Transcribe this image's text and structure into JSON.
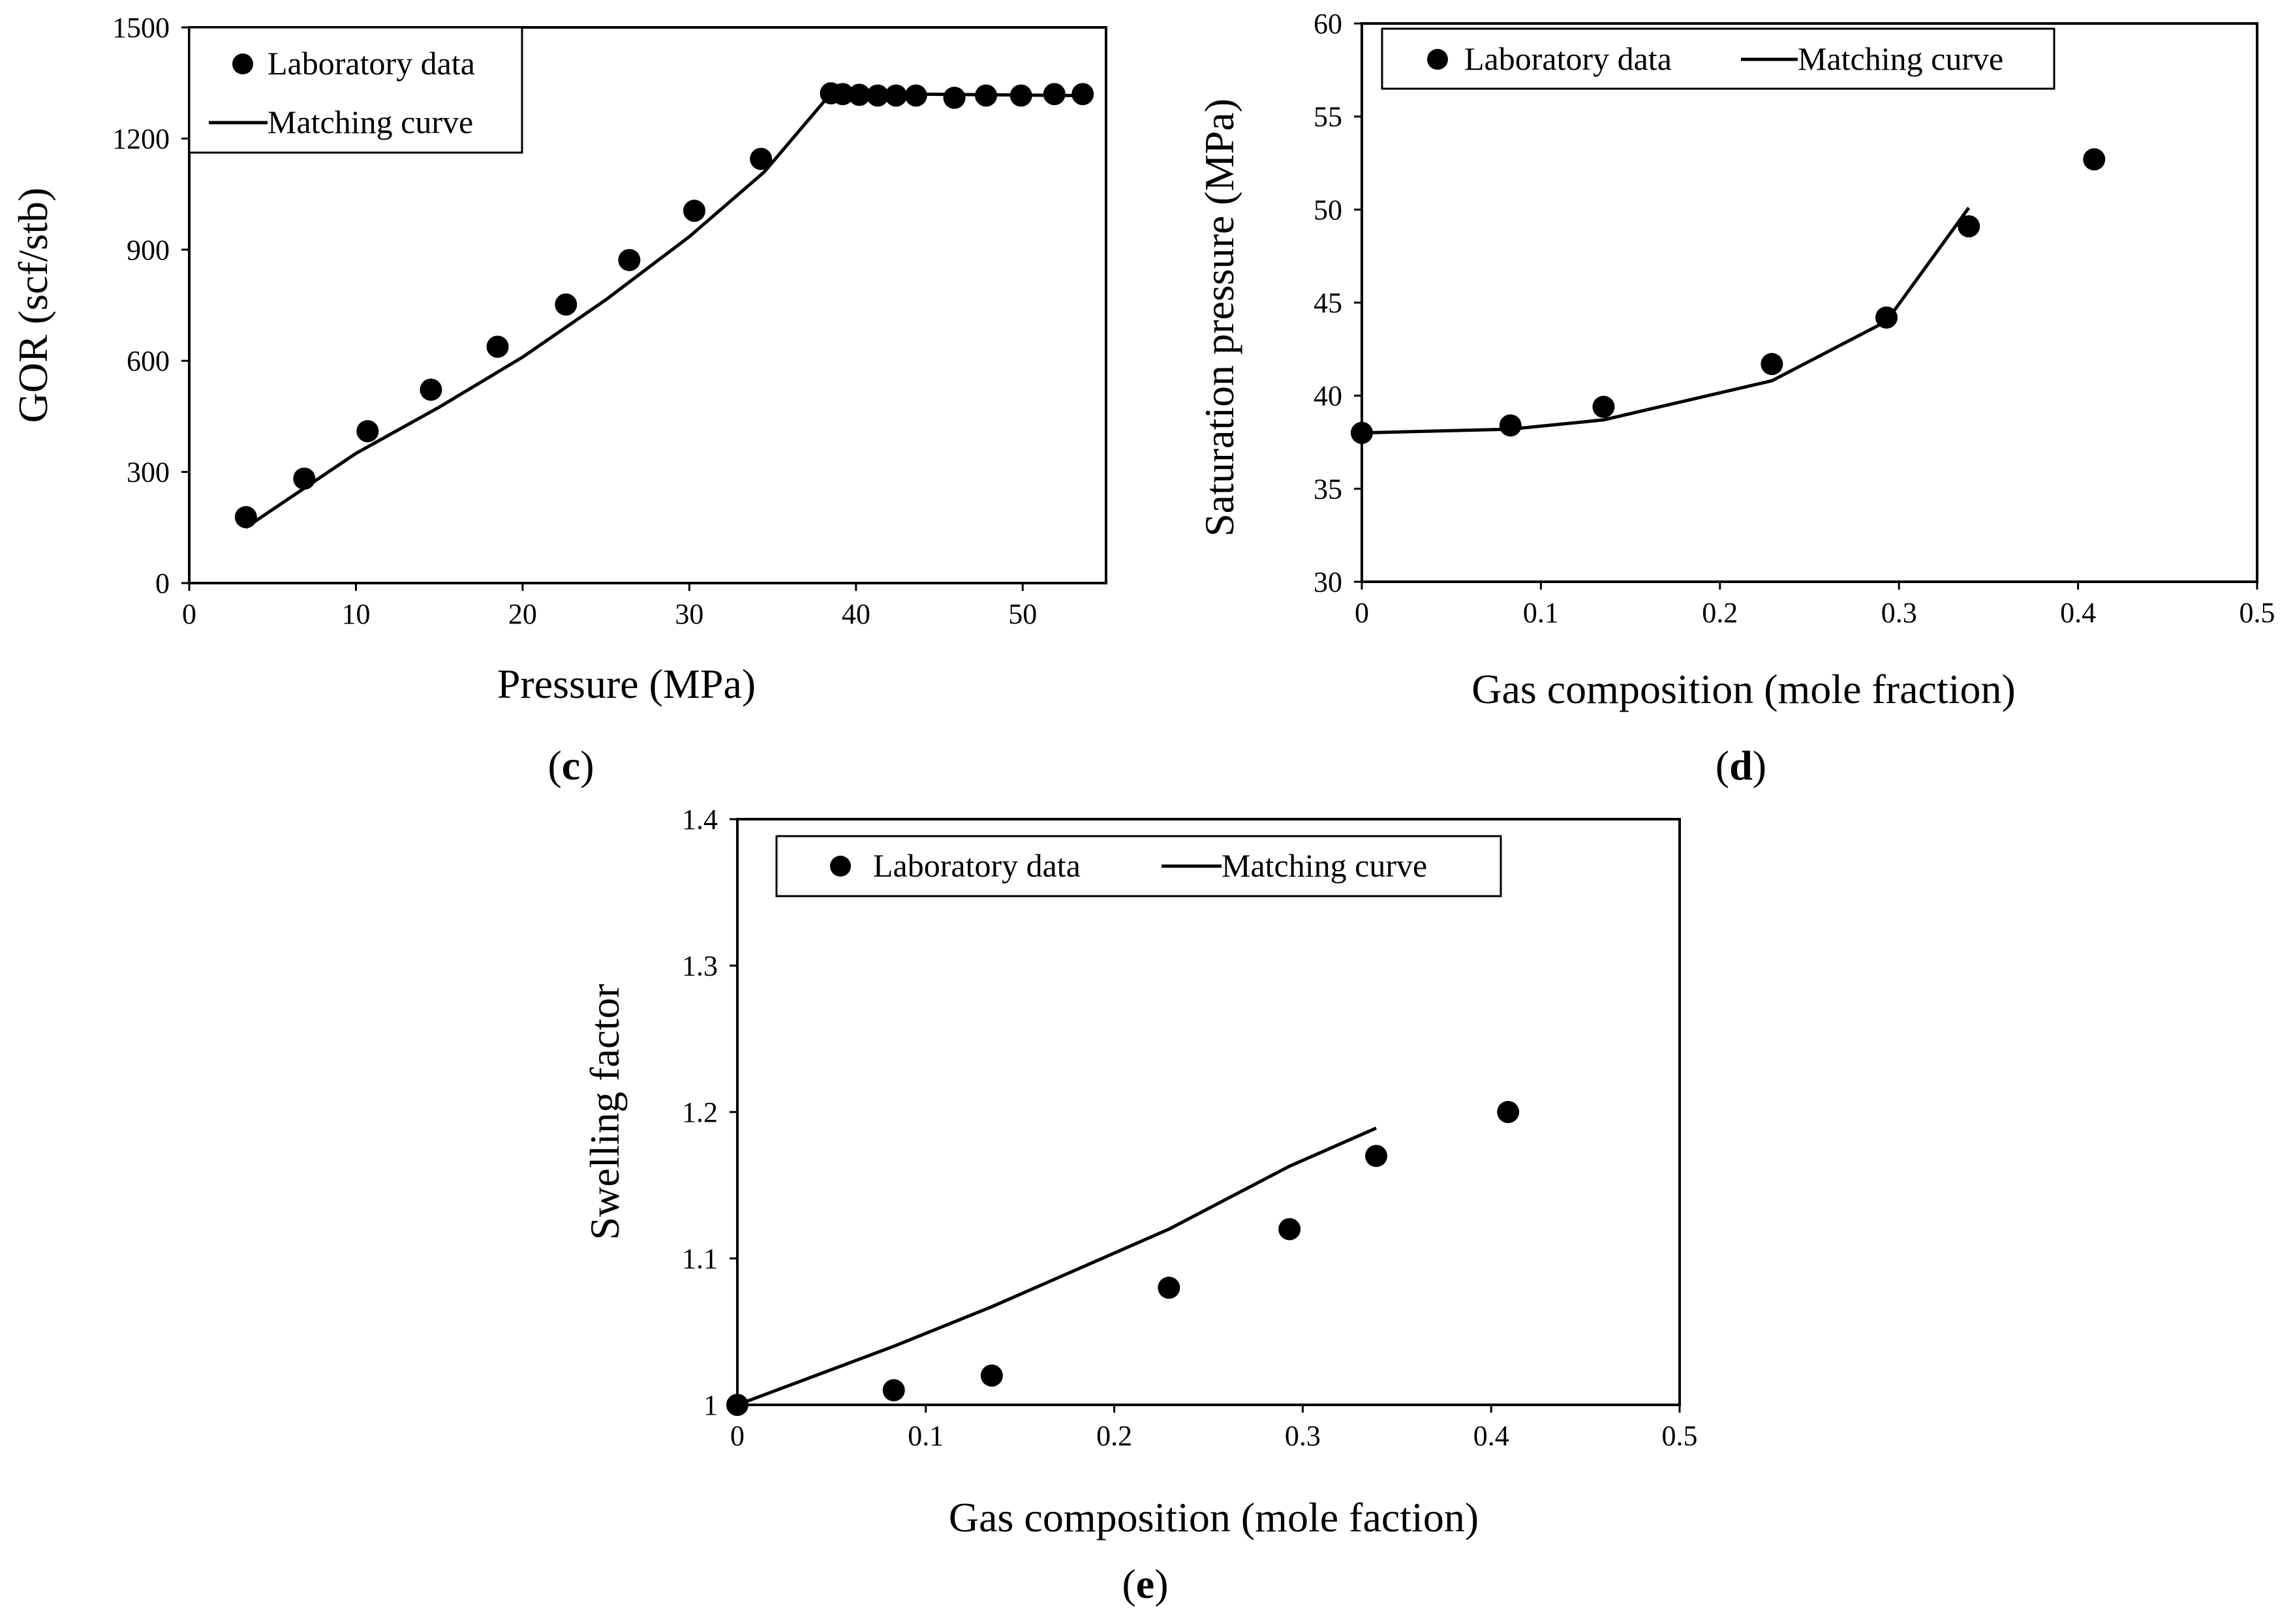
{
  "chart_data": [
    {
      "id": "c",
      "type": "scatter",
      "panel_label": "c",
      "xlabel": "Pressure (MPa)",
      "ylabel": "GOR (scf/stb)",
      "xlim": [
        0,
        55
      ],
      "ylim": [
        0,
        1500
      ],
      "xticks": [
        0,
        10,
        20,
        30,
        40,
        50
      ],
      "yticks": [
        0,
        300,
        600,
        900,
        1200,
        1500
      ],
      "grid": false,
      "legend": {
        "position": "top-left",
        "layout": "vertical",
        "entries": [
          "Laboratory data",
          "Matching curve"
        ]
      },
      "series": [
        {
          "name": "Laboratory data",
          "kind": "points",
          "x": [
            3.4,
            6.9,
            10.7,
            14.5,
            18.5,
            22.6,
            26.4,
            30.3,
            34.3,
            38.5,
            39.2,
            40.2,
            41.3,
            42.4,
            43.6,
            45.9,
            47.8,
            49.9,
            51.9,
            53.6
          ],
          "y": [
            178,
            282,
            410,
            522,
            638,
            752,
            872,
            1005,
            1145,
            1322,
            1320,
            1318,
            1316,
            1316,
            1316,
            1310,
            1316,
            1316,
            1320,
            1320
          ]
        },
        {
          "name": "Matching curve",
          "kind": "line",
          "x": [
            3.4,
            10,
            15,
            20,
            25,
            30,
            34.5,
            38.5,
            53.6
          ],
          "y": [
            150,
            350,
            475,
            610,
            765,
            935,
            1110,
            1322,
            1316
          ]
        }
      ]
    },
    {
      "id": "d",
      "type": "scatter",
      "panel_label": "d",
      "xlabel": "Gas composition (mole fraction)",
      "ylabel": "Saturation pressure (MPa)",
      "xlim": [
        0,
        0.5
      ],
      "ylim": [
        30,
        60
      ],
      "xticks": [
        "0",
        "0.1",
        "0.2",
        "0.3",
        "0.4",
        "0.5"
      ],
      "yticks": [
        "30",
        "35",
        "40",
        "45",
        "50",
        "55",
        "60"
      ],
      "grid": false,
      "legend": {
        "position": "top-left",
        "layout": "horizontal",
        "entries": [
          "Laboratory data",
          "Matching curve"
        ]
      },
      "series": [
        {
          "name": "Laboratory data",
          "kind": "points",
          "x": [
            0,
            0.083,
            0.135,
            0.229,
            0.293,
            0.339,
            0.409
          ],
          "y": [
            38.0,
            38.4,
            39.4,
            41.7,
            44.2,
            49.1,
            52.7
          ]
        },
        {
          "name": "Matching curve",
          "kind": "line",
          "x": [
            0,
            0.083,
            0.135,
            0.229,
            0.293,
            0.339
          ],
          "y": [
            38.0,
            38.2,
            38.7,
            40.8,
            44.0,
            50.1
          ]
        }
      ]
    },
    {
      "id": "e",
      "type": "scatter",
      "panel_label": "e",
      "xlabel": "Gas composition (mole faction)",
      "ylabel": "Swelling factor",
      "xlim": [
        0,
        0.5
      ],
      "ylim": [
        1.0,
        1.4
      ],
      "xticks": [
        "0",
        "0.1",
        "0.2",
        "0.3",
        "0.4",
        "0.5"
      ],
      "yticks": [
        "1",
        "1.1",
        "1.2",
        "1.3",
        "1.4"
      ],
      "grid": false,
      "legend": {
        "position": "top-left",
        "layout": "horizontal",
        "entries": [
          "Laboratory data",
          "Matching curve"
        ]
      },
      "series": [
        {
          "name": "Laboratory data",
          "kind": "points",
          "x": [
            0,
            0.083,
            0.135,
            0.229,
            0.293,
            0.339,
            0.409
          ],
          "y": [
            1.0,
            1.01,
            1.02,
            1.08,
            1.12,
            1.17,
            1.2
          ]
        },
        {
          "name": "Matching curve",
          "kind": "line",
          "x": [
            0,
            0.083,
            0.135,
            0.229,
            0.293,
            0.339
          ],
          "y": [
            1.0,
            1.04,
            1.067,
            1.12,
            1.163,
            1.189
          ]
        }
      ]
    }
  ]
}
